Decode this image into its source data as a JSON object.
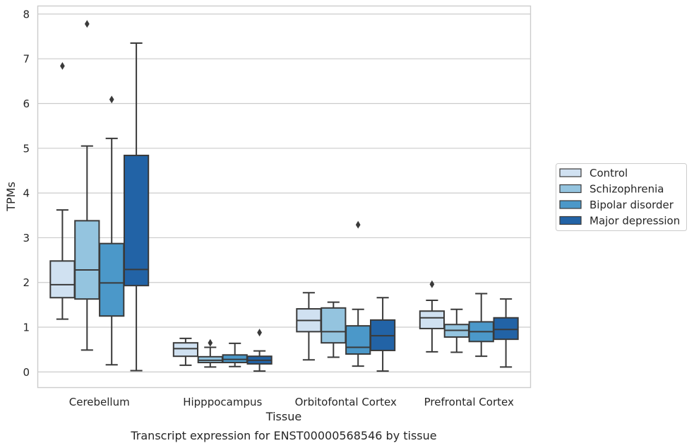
{
  "chart_data": {
    "type": "boxplot",
    "caption": "Transcript expression for ENST00000568546 by tissue",
    "xlabel": "Tissue",
    "ylabel": "TPMs",
    "ylim": [
      -0.35,
      8.18
    ],
    "yticks": [
      0,
      1,
      2,
      3,
      4,
      5,
      6,
      7,
      8
    ],
    "grid": "horizontal",
    "legend_placement": "right",
    "categories": [
      "Cerebellum",
      "Hipppocampus",
      "Orbitofontal Cortex",
      "Prefrontal Cortex"
    ],
    "series": [
      {
        "name": "Control",
        "color": "#d0e1f1",
        "boxes": [
          {
            "whislo": 1.18,
            "q1": 1.66,
            "med": 1.95,
            "q3": 2.48,
            "whishi": 3.62,
            "fliers": [
              6.84
            ]
          },
          {
            "whislo": 0.15,
            "q1": 0.35,
            "med": 0.52,
            "q3": 0.65,
            "whishi": 0.75,
            "fliers": []
          },
          {
            "whislo": 0.27,
            "q1": 0.9,
            "med": 1.15,
            "q3": 1.41,
            "whishi": 1.77,
            "fliers": []
          },
          {
            "whislo": 0.45,
            "q1": 0.97,
            "med": 1.21,
            "q3": 1.36,
            "whishi": 1.6,
            "fliers": [
              1.96
            ]
          }
        ]
      },
      {
        "name": "Schizophrenia",
        "color": "#94c4df",
        "boxes": [
          {
            "whislo": 0.49,
            "q1": 1.63,
            "med": 2.28,
            "q3": 3.38,
            "whishi": 5.05,
            "fliers": [
              7.78
            ]
          },
          {
            "whislo": 0.11,
            "q1": 0.21,
            "med": 0.26,
            "q3": 0.34,
            "whishi": 0.55,
            "fliers": [
              0.65
            ]
          },
          {
            "whislo": 0.33,
            "q1": 0.65,
            "med": 0.9,
            "q3": 1.43,
            "whishi": 1.56,
            "fliers": []
          },
          {
            "whislo": 0.44,
            "q1": 0.78,
            "med": 0.93,
            "q3": 1.06,
            "whishi": 1.4,
            "fliers": []
          }
        ]
      },
      {
        "name": "Bipolar disorder",
        "color": "#4b98c9",
        "boxes": [
          {
            "whislo": 0.16,
            "q1": 1.25,
            "med": 1.99,
            "q3": 2.87,
            "whishi": 5.22,
            "fliers": [
              6.09
            ]
          },
          {
            "whislo": 0.12,
            "q1": 0.21,
            "med": 0.28,
            "q3": 0.38,
            "whishi": 0.64,
            "fliers": []
          },
          {
            "whislo": 0.13,
            "q1": 0.4,
            "med": 0.55,
            "q3": 1.03,
            "whishi": 1.4,
            "fliers": [
              3.29
            ]
          },
          {
            "whislo": 0.35,
            "q1": 0.68,
            "med": 0.9,
            "q3": 1.12,
            "whishi": 1.75,
            "fliers": []
          }
        ]
      },
      {
        "name": "Major depression",
        "color": "#2263a6",
        "boxes": [
          {
            "whislo": 0.03,
            "q1": 1.93,
            "med": 2.29,
            "q3": 4.84,
            "whishi": 7.35,
            "fliers": []
          },
          {
            "whislo": 0.02,
            "q1": 0.18,
            "med": 0.26,
            "q3": 0.35,
            "whishi": 0.47,
            "fliers": [
              0.88
            ]
          },
          {
            "whislo": 0.02,
            "q1": 0.48,
            "med": 0.81,
            "q3": 1.16,
            "whishi": 1.66,
            "fliers": []
          },
          {
            "whislo": 0.11,
            "q1": 0.73,
            "med": 0.95,
            "q3": 1.21,
            "whishi": 1.63,
            "fliers": []
          }
        ]
      }
    ]
  }
}
